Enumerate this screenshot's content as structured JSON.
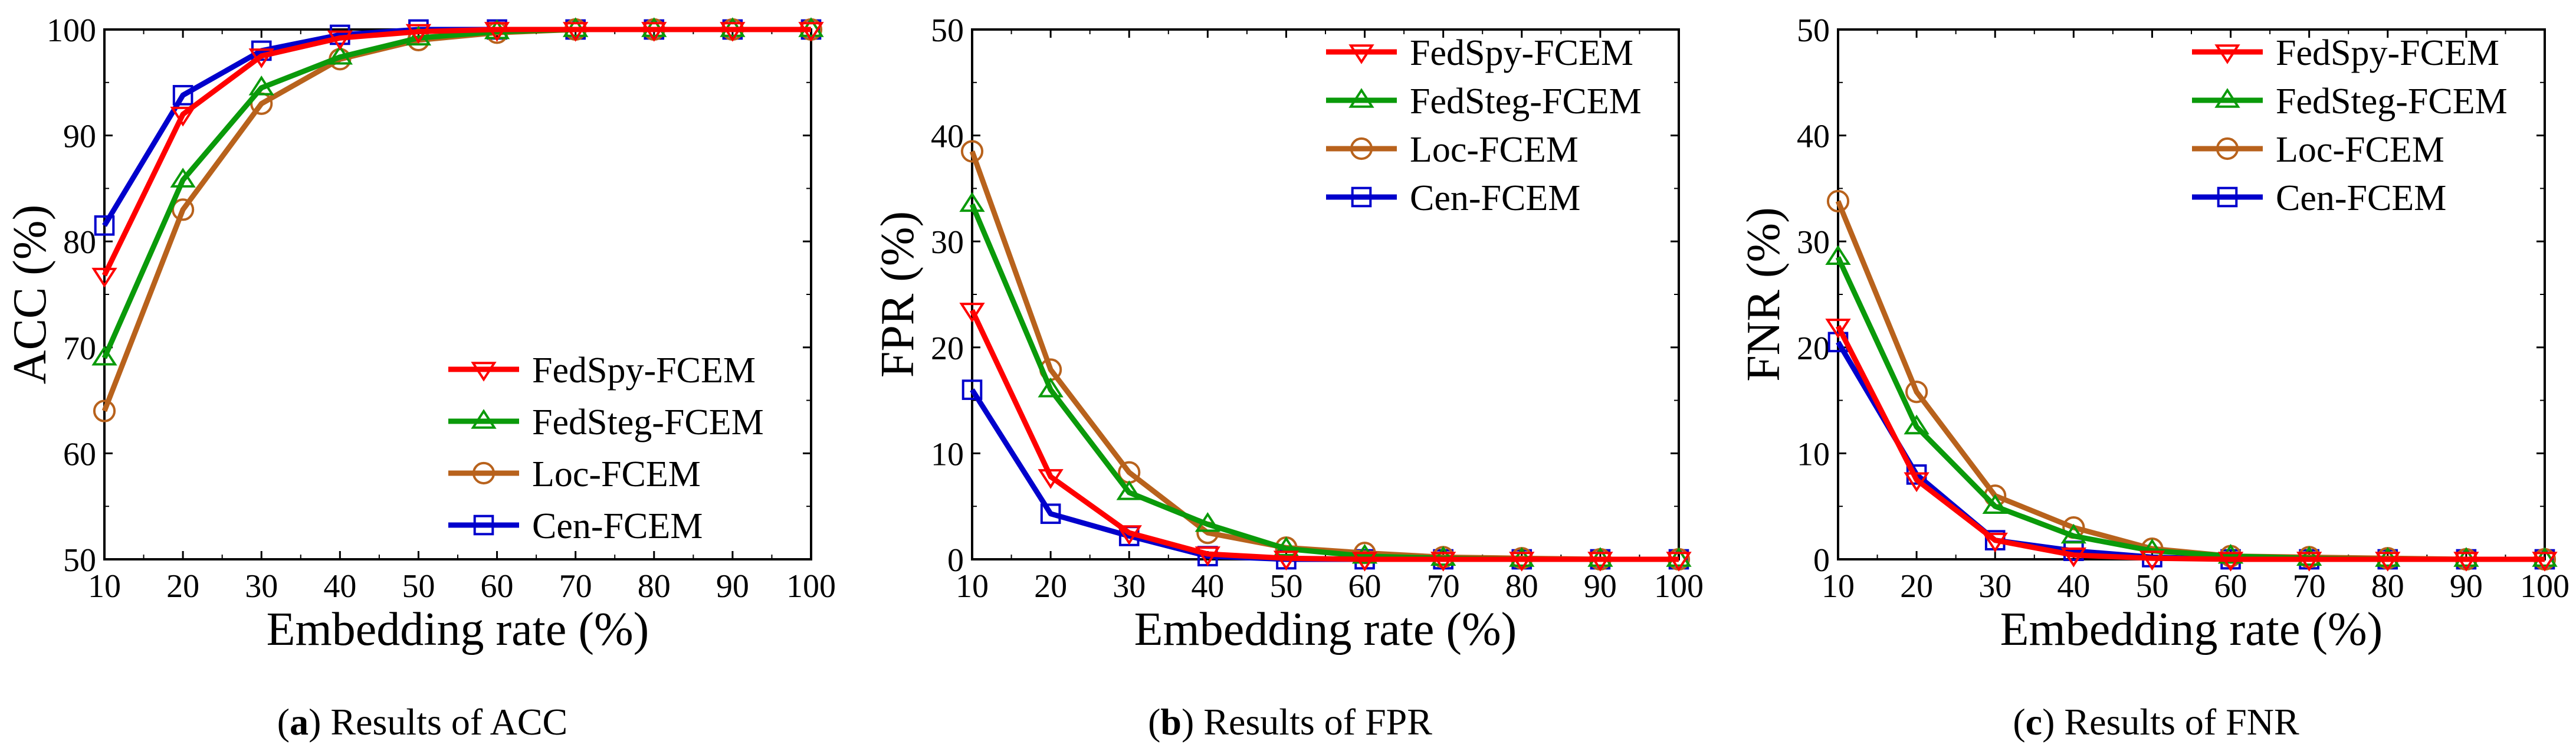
{
  "chart_data": [
    {
      "type": "line",
      "panel": "a",
      "xlabel": "Embedding rate (%)",
      "ylabel": "ACC (%)",
      "xlim": [
        10,
        100
      ],
      "ylim": [
        50,
        100
      ],
      "xticks": [
        10,
        20,
        30,
        40,
        50,
        60,
        70,
        80,
        90,
        100
      ],
      "yticks": [
        50,
        60,
        70,
        80,
        90,
        100
      ],
      "legend_position": "bottom-right",
      "caption": {
        "label": "a",
        "text": " Results of ACC"
      },
      "x": [
        10,
        20,
        30,
        40,
        50,
        60,
        70,
        80,
        90,
        100
      ],
      "series": [
        {
          "name": "FedSpy-FCEM",
          "color": "#ff0000",
          "marker": "triangle-down",
          "values": [
            76.8,
            92.0,
            97.5,
            99.2,
            99.8,
            100,
            100,
            100,
            100,
            100
          ]
        },
        {
          "name": "FedSteg-FCEM",
          "color": "#0a9a0a",
          "marker": "triangle-up",
          "values": [
            69.0,
            85.8,
            94.5,
            97.4,
            99.2,
            99.8,
            100,
            100,
            100,
            100
          ]
        },
        {
          "name": "Loc-FCEM",
          "color": "#b8621c",
          "marker": "circle",
          "values": [
            64.0,
            83.0,
            93.0,
            97.2,
            99.0,
            99.7,
            100,
            100,
            100,
            100
          ]
        },
        {
          "name": "Cen-FCEM",
          "color": "#0000cc",
          "marker": "square",
          "values": [
            81.5,
            93.8,
            98.0,
            99.5,
            100,
            100,
            100,
            100,
            100,
            100
          ]
        }
      ]
    },
    {
      "type": "line",
      "panel": "b",
      "xlabel": "Embedding rate (%)",
      "ylabel": "FPR (%)",
      "xlim": [
        10,
        100
      ],
      "ylim": [
        0,
        50
      ],
      "xticks": [
        10,
        20,
        30,
        40,
        50,
        60,
        70,
        80,
        90,
        100
      ],
      "yticks": [
        0,
        10,
        20,
        30,
        40,
        50
      ],
      "legend_position": "top-right",
      "caption": {
        "label": "b",
        "text": " Results of FPR"
      },
      "x": [
        10,
        20,
        30,
        40,
        50,
        60,
        70,
        80,
        90,
        100
      ],
      "series": [
        {
          "name": "FedSpy-FCEM",
          "color": "#ff0000",
          "marker": "triangle-down",
          "values": [
            23.5,
            7.8,
            2.5,
            0.5,
            0.1,
            0,
            0,
            0,
            0,
            0
          ]
        },
        {
          "name": "FedSteg-FCEM",
          "color": "#0a9a0a",
          "marker": "triangle-up",
          "values": [
            33.5,
            16.0,
            6.3,
            3.3,
            1.0,
            0.3,
            0.1,
            0,
            0,
            0
          ]
        },
        {
          "name": "Loc-FCEM",
          "color": "#b8621c",
          "marker": "circle",
          "values": [
            38.5,
            17.9,
            8.2,
            2.5,
            1.1,
            0.6,
            0.2,
            0.1,
            0,
            0
          ]
        },
        {
          "name": "Cen-FCEM",
          "color": "#0000cc",
          "marker": "square",
          "values": [
            16.0,
            4.3,
            2.2,
            0.3,
            0,
            0,
            0,
            0,
            0,
            0
          ]
        }
      ]
    },
    {
      "type": "line",
      "panel": "c",
      "xlabel": "Embedding rate (%)",
      "ylabel": "FNR (%)",
      "xlim": [
        10,
        100
      ],
      "ylim": [
        0,
        50
      ],
      "xticks": [
        10,
        20,
        30,
        40,
        50,
        60,
        70,
        80,
        90,
        100
      ],
      "yticks": [
        0,
        10,
        20,
        30,
        40,
        50
      ],
      "legend_position": "top-right",
      "caption": {
        "label": "c",
        "text": " Results of FNR"
      },
      "x": [
        10,
        20,
        30,
        40,
        50,
        60,
        70,
        80,
        90,
        100
      ],
      "series": [
        {
          "name": "FedSpy-FCEM",
          "color": "#ff0000",
          "marker": "triangle-down",
          "values": [
            22.0,
            7.5,
            1.8,
            0.4,
            0.1,
            0,
            0,
            0,
            0,
            0
          ]
        },
        {
          "name": "FedSteg-FCEM",
          "color": "#0a9a0a",
          "marker": "triangle-up",
          "values": [
            28.5,
            12.5,
            5.0,
            2.2,
            0.8,
            0.3,
            0.1,
            0,
            0,
            0
          ]
        },
        {
          "name": "Loc-FCEM",
          "color": "#b8621c",
          "marker": "circle",
          "values": [
            33.8,
            15.8,
            6.0,
            3.0,
            1.0,
            0.3,
            0.2,
            0.1,
            0,
            0
          ]
        },
        {
          "name": "Cen-FCEM",
          "color": "#0000cc",
          "marker": "square",
          "values": [
            20.5,
            8.0,
            1.8,
            0.8,
            0.2,
            0,
            0,
            0,
            0,
            0
          ]
        }
      ]
    }
  ]
}
